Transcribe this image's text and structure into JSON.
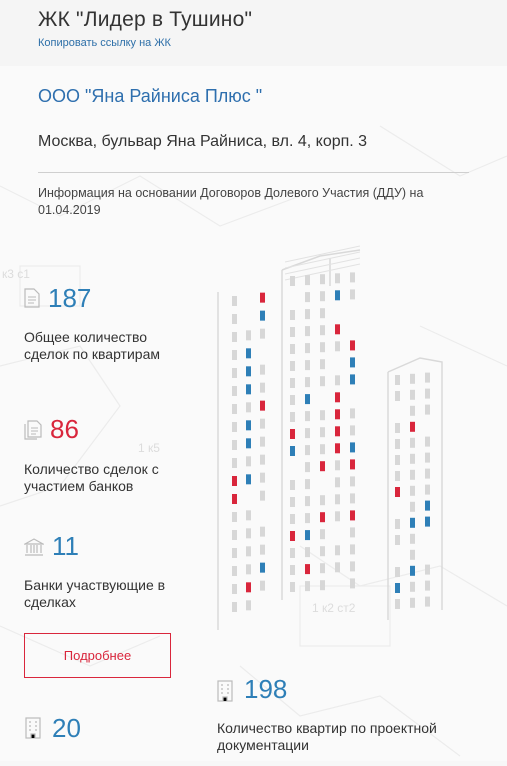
{
  "header": {
    "title": "ЖК \"Лидер в Тушино\"",
    "copy_link": "Копировать ссылку на ЖК"
  },
  "company": {
    "name": "ООО \"Яна Райниса Плюс \"",
    "address": "Москва, бульвар Яна Райниса, вл. 4, корп. 3"
  },
  "info_text": "Информация на основании Договоров Долевого Участия (ДДУ) на 01.04.2019",
  "map_labels": [
    "к3 с1",
    "1 к5",
    "1 к2 ст2"
  ],
  "stats": {
    "total_deals": {
      "value": "187",
      "label": "Общее количество сделок по квартирам",
      "icon": "document-icon"
    },
    "bank_deals": {
      "value": "86",
      "label": "Количество сделок с участием банков",
      "icon": "documents-icon"
    },
    "banks": {
      "value": "11",
      "label": "Банки участвующие в сделках",
      "icon": "bank-icon"
    },
    "apartments": {
      "value": "198",
      "label": "Количество квартир по проектной документации",
      "icon": "building-icon"
    },
    "other": {
      "value": "20",
      "icon": "building-icon"
    }
  },
  "buttons": {
    "more": "Подробнее"
  },
  "colors": {
    "accent_blue": "#2e7fb7",
    "accent_red": "#d9263c",
    "window_gray": "#d7d7d7"
  }
}
